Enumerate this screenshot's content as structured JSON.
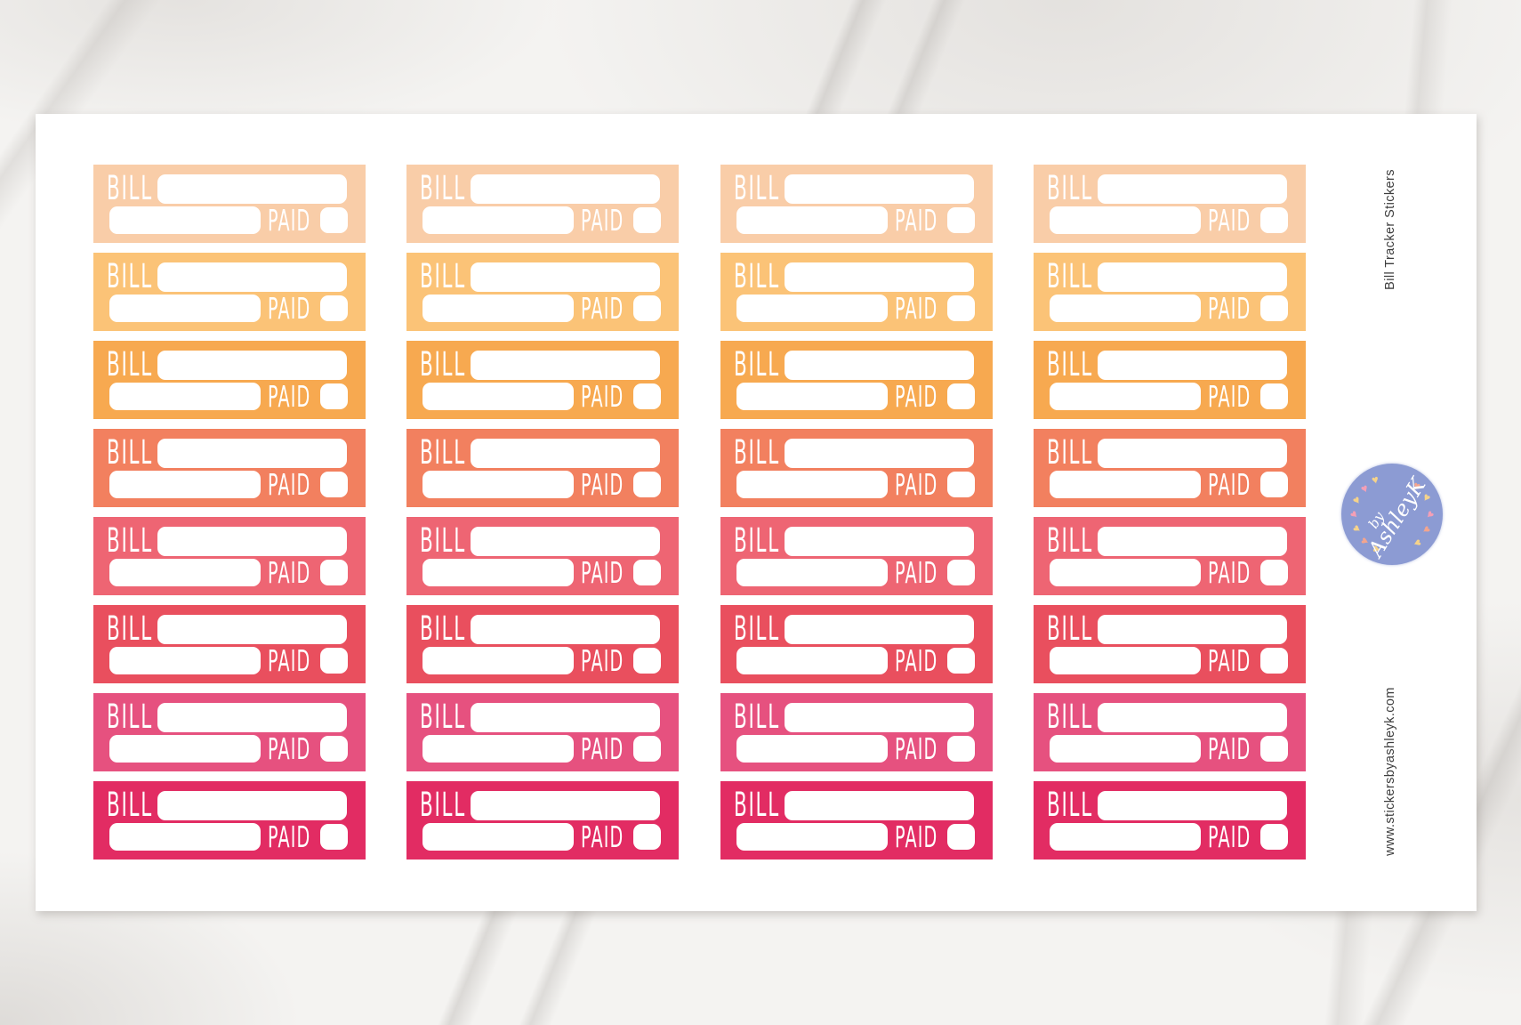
{
  "background": {
    "surface": "marble",
    "base_color": "#F4F3F1",
    "vein_color": "#CFCBC7"
  },
  "sheet": {
    "color": "#FFFFFF"
  },
  "side": {
    "title": "Bill Tracker Stickers",
    "url": "www.stickersbyashleyk.com",
    "text_color": "#3D3D3D"
  },
  "badge": {
    "line1": "by",
    "line2": "AshleyK",
    "circle_color": "#8C9BD3",
    "text_color": "#FFFFFF",
    "heart_colors": {
      "yellow": "#F6D38A",
      "salmon": "#F3A58F",
      "pink": "#F49FB6"
    }
  },
  "sticker": {
    "bill_label": "BILL",
    "paid_label": "PAID",
    "field_color": "#FFFFFF"
  },
  "grid": {
    "columns": 4,
    "rows": 8,
    "row_colors": [
      "#F9CDA8",
      "#FBC377",
      "#F7A950",
      "#F2805F",
      "#EE6573",
      "#E94F5E",
      "#E6517F",
      "#E22C63"
    ]
  }
}
